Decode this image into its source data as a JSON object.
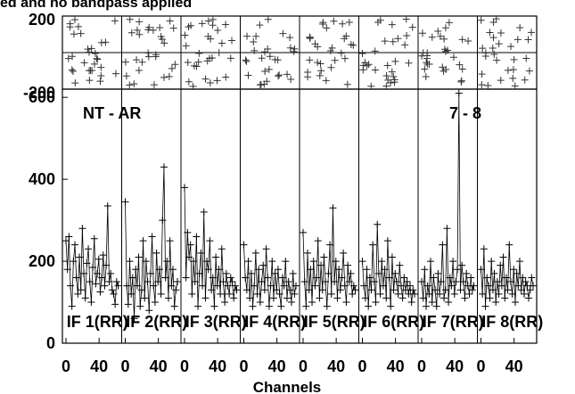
{
  "chart_data": {
    "type": "scatter",
    "title": "ed and no bandpass applied",
    "xlabel": "Channels",
    "ylabel": "",
    "grid": false,
    "phase_panel": {
      "ylim": [
        -200,
        200
      ],
      "yticks": [
        "200",
        "-200"
      ]
    },
    "amp_panel": {
      "ylim": [
        0,
        620
      ],
      "yticks": [
        0,
        200,
        400,
        600
      ],
      "baseline_label": "NT - AR",
      "subtitle_right": "7 - 8"
    },
    "x_range_per_if": [
      0,
      63
    ],
    "x_ticks": [
      0,
      40
    ],
    "series": [
      {
        "name": "IF 1(RR)",
        "amplitudes": [
          250,
          180,
          260,
          140,
          90,
          200,
          240,
          160,
          120,
          210,
          130,
          280,
          170,
          110,
          195,
          230,
          150,
          100,
          185,
          255,
          145,
          170,
          205,
          125,
          160,
          215,
          140,
          190,
          335,
          150,
          170,
          130,
          120,
          95,
          150,
          140
        ]
      },
      {
        "name": "IF 2(RR)",
        "amplitudes": [
          345,
          140,
          95,
          200,
          120,
          160,
          60,
          180,
          140,
          210,
          90,
          130,
          250,
          110,
          200,
          150,
          80,
          170,
          260,
          140,
          100,
          220,
          150,
          180,
          120,
          300,
          430,
          160,
          200,
          110,
          250,
          140,
          180,
          90,
          130,
          150
        ]
      },
      {
        "name": "IF 3(RR)",
        "amplitudes": [
          380,
          160,
          270,
          210,
          240,
          120,
          200,
          150,
          260,
          90,
          170,
          220,
          140,
          320,
          110,
          200,
          180,
          250,
          130,
          160,
          90,
          210,
          140,
          180,
          120,
          230,
          150,
          100,
          170,
          140,
          120,
          160,
          150,
          110,
          140,
          130
        ]
      },
      {
        "name": "IF 4(RR)",
        "amplitudes": [
          240,
          160,
          130,
          200,
          110,
          170,
          90,
          140,
          220,
          120,
          180,
          100,
          150,
          190,
          130,
          230,
          160,
          90,
          140,
          200,
          110,
          170,
          130,
          180,
          120,
          90,
          160,
          140,
          200,
          110,
          150,
          130,
          100,
          170,
          120,
          140
        ]
      },
      {
        "name": "IF 5(RR)",
        "amplitudes": [
          270,
          150,
          90,
          220,
          130,
          180,
          100,
          200,
          140,
          160,
          250,
          110,
          190,
          130,
          210,
          150,
          90,
          170,
          240,
          120,
          330,
          150,
          200,
          110,
          180,
          130,
          160,
          220,
          140,
          100,
          190,
          150,
          170,
          120,
          140,
          130
        ]
      },
      {
        "name": "IF 6(RR)",
        "amplitudes": [
          200,
          140,
          110,
          180,
          90,
          160,
          130,
          240,
          150,
          100,
          290,
          170,
          120,
          200,
          140,
          180,
          110,
          250,
          160,
          90,
          210,
          130,
          170,
          150,
          120,
          190,
          140,
          110,
          160,
          130,
          150,
          120,
          140,
          100,
          130,
          120
        ]
      },
      {
        "name": "IF 7(RR)",
        "amplitudes": [
          150,
          110,
          180,
          90,
          140,
          120,
          200,
          100,
          160,
          130,
          90,
          170,
          120,
          150,
          240,
          110,
          130,
          280,
          100,
          160,
          140,
          200,
          120,
          150,
          180,
          610,
          130,
          190,
          150,
          110,
          170,
          140,
          120,
          160,
          130,
          140
        ]
      },
      {
        "name": "IF 8(RR)",
        "amplitudes": [
          180,
          120,
          230,
          90,
          160,
          140,
          110,
          200,
          130,
          170,
          100,
          150,
          120,
          190,
          140,
          210,
          110,
          160,
          130,
          240,
          150,
          120,
          180,
          100,
          170,
          140,
          200,
          130,
          160,
          120,
          150,
          140,
          110,
          130,
          160,
          140
        ]
      }
    ]
  }
}
